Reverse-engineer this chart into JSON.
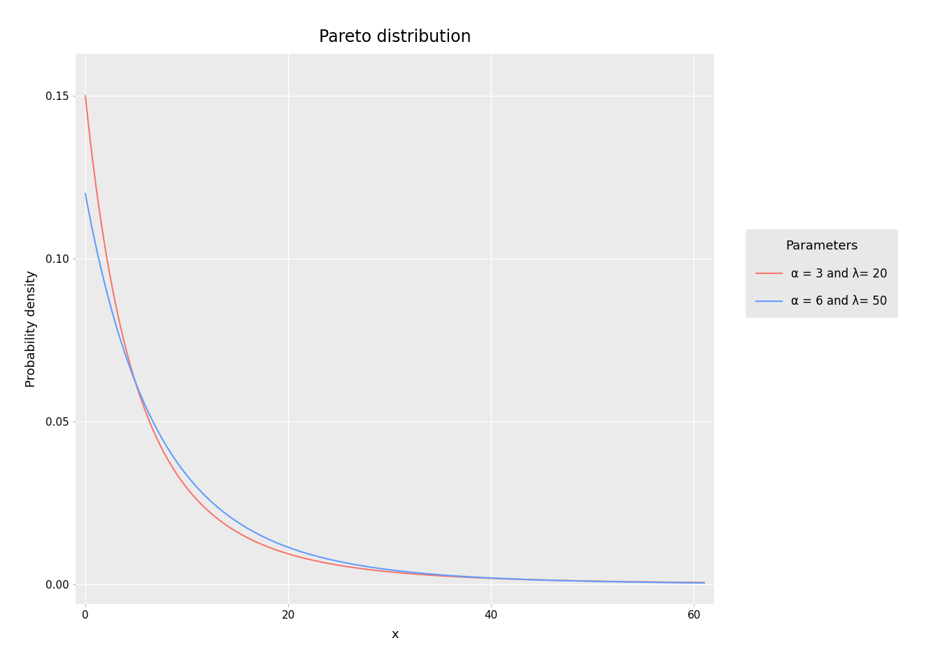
{
  "title": "Pareto distribution",
  "xlabel": "x",
  "ylabel": "Probability density",
  "xlim": [
    -1,
    62
  ],
  "ylim": [
    -0.006,
    0.163
  ],
  "yticks": [
    0.0,
    0.05,
    0.1,
    0.15
  ],
  "xticks": [
    0,
    20,
    40,
    60
  ],
  "background_color": "#EBEBEB",
  "grid_color": "#FFFFFF",
  "series": [
    {
      "alpha": 3,
      "lambda": 20,
      "color": "#F8766D",
      "label": "α = 3 and λ= 20"
    },
    {
      "alpha": 6,
      "lambda": 50,
      "color": "#619CFF",
      "label": "α = 6 and λ= 50"
    }
  ],
  "legend_title": "Parameters",
  "legend_bg": "#E8E8E8",
  "title_fontsize": 17,
  "axis_label_fontsize": 13,
  "tick_fontsize": 11,
  "legend_fontsize": 12,
  "legend_title_fontsize": 13,
  "line_width": 1.5
}
